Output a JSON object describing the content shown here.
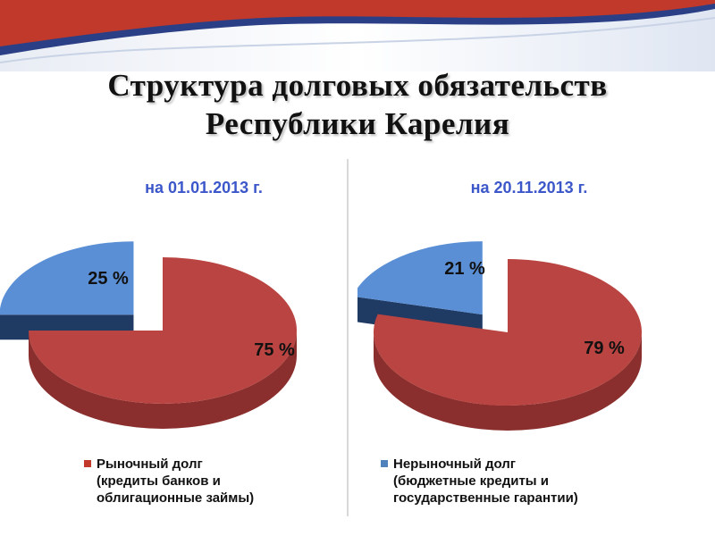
{
  "title_line1": "Структура долговых обязательств",
  "title_line2": "Республики Карелия",
  "colors": {
    "market_top": "#b94441",
    "market_side": "#8a2f2d",
    "nonmarket_top": "#5a8fd6",
    "nonmarket_side": "#1f3a63",
    "period_text": "#3c57c9"
  },
  "legend": {
    "market": {
      "line1": "Рыночный долг",
      "line2": "(кредиты банков и",
      "line3": "облигационные займы)",
      "color": "#c0392b"
    },
    "nonmarket": {
      "line1": "Нерыночный долг",
      "line2": "(бюджетные кредиты и",
      "line3": "государственные гарантии)",
      "color": "#4f81bd"
    }
  },
  "chart_data": [
    {
      "type": "pie",
      "title": "на  01.01.2013  г.",
      "categories": [
        "Рыночный долг",
        "Нерыночный долг"
      ],
      "values": [
        75,
        25
      ],
      "labels": [
        "75 %",
        "25 %"
      ]
    },
    {
      "type": "pie",
      "title": "на 20.11.2013 г.",
      "categories": [
        "Рыночный долг",
        "Нерыночный долг"
      ],
      "values": [
        79,
        21
      ],
      "labels": [
        "79 %",
        "21 %"
      ]
    }
  ]
}
